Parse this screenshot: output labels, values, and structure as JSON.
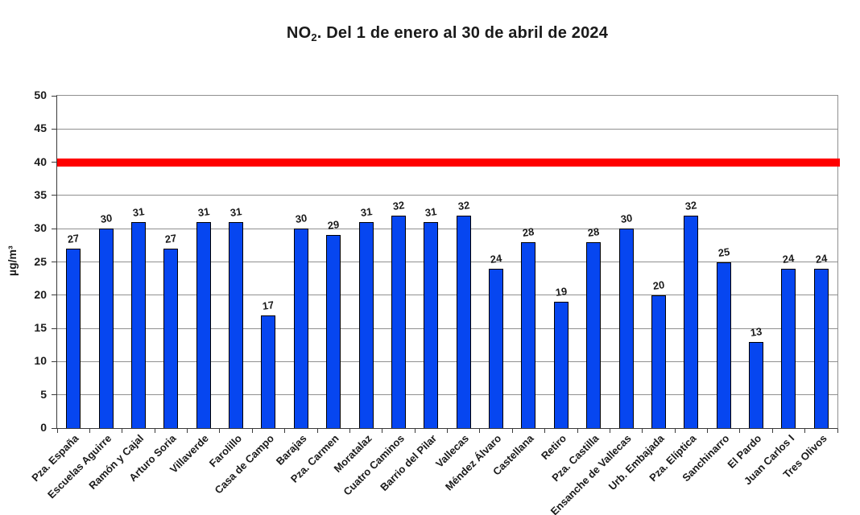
{
  "chart_data": {
    "type": "bar",
    "title": "NO2. Del 1 de enero al 30 de abril de 2024",
    "title_parts": {
      "base": "NO",
      "subscript": "2",
      "rest": ". Del 1 de enero al 30 de abril de 2024"
    },
    "ylabel": "µg/m³",
    "ylim": [
      0,
      50
    ],
    "ytick_step": 5,
    "yticks": [
      0,
      5,
      10,
      15,
      20,
      25,
      30,
      35,
      40,
      45,
      50
    ],
    "grid": true,
    "legend_position": "none",
    "categories": [
      "Pza. España",
      "Escuelas Aguirre",
      "Ramón y Cajal",
      "Arturo Soria",
      "Villaverde",
      "Farolillo",
      "Casa de Campo",
      "Barajas",
      "Pza. Carmen",
      "Moratalaz",
      "Cuatro Caminos",
      "Barrio del Pilar",
      "Vallecas",
      "Méndez Álvaro",
      "Castellana",
      "Retiro",
      "Pza. Castilla",
      "Ensanche de Vallecas",
      "Urb. Embajada",
      "Pza. Elíptica",
      "Sanchinarro",
      "El Pardo",
      "Juan Carlos I",
      "Tres Olivos"
    ],
    "values": [
      27,
      30,
      31,
      27,
      31,
      31,
      17,
      30,
      29,
      31,
      32,
      31,
      32,
      24,
      28,
      19,
      28,
      30,
      20,
      32,
      25,
      13,
      24,
      24
    ],
    "reference_line": {
      "value": 40,
      "thickness_px": 10,
      "color": "#ff0000"
    },
    "colors": {
      "bar_fill": "#0646f0",
      "bar_border": "#000000",
      "gridline": "#909090",
      "axis": "#3a3a3a",
      "text": "#1a1a1a",
      "background": "#ffffff",
      "reference": "#ff0000"
    }
  }
}
